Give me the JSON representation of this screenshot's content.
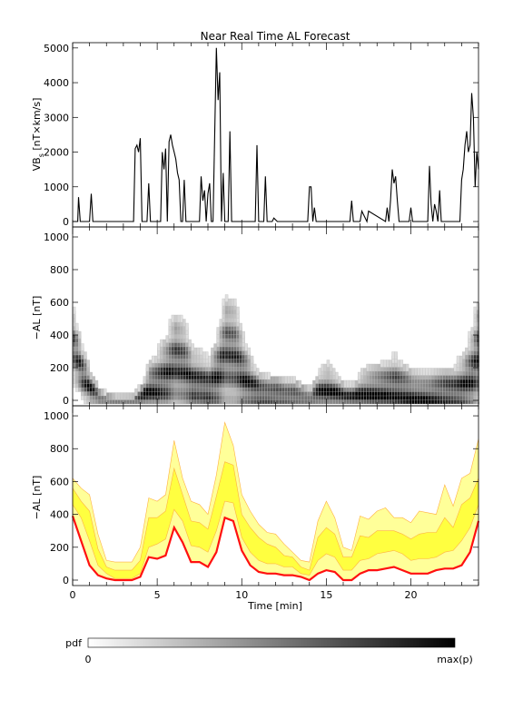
{
  "title": "Near Real Time AL Forecast",
  "colors": {
    "median": "#ff1010",
    "band_inner": "#ffff40",
    "band_outer": "#ffff99",
    "band_line": "#ffb040",
    "trace": "#000000"
  },
  "colorbar": {
    "label": "pdf",
    "min_label": "0",
    "max_label": "max(p)"
  },
  "chart_data": [
    {
      "type": "line",
      "panel": "vbs",
      "ylabel_main": "VB",
      "ylabel_sub": "s",
      "ylabel_rest": " [nT×km/s]",
      "ylim": [
        0,
        5100
      ],
      "xlim": [
        0,
        24
      ],
      "yticks": [
        "0",
        "1000",
        "2000",
        "3000",
        "4000",
        "5000"
      ],
      "ytick_values": [
        0,
        1000,
        2000,
        3000,
        4000,
        5000
      ],
      "x": [
        0,
        0.3,
        0.35,
        0.45,
        1.0,
        1.1,
        1.2,
        3.6,
        3.7,
        3.8,
        3.9,
        4.0,
        4.1,
        4.4,
        4.5,
        4.6,
        5.2,
        5.3,
        5.4,
        5.5,
        5.6,
        5.7,
        5.8,
        5.9,
        6.0,
        6.1,
        6.2,
        6.3,
        6.4,
        6.5,
        6.6,
        6.7,
        6.8,
        7.5,
        7.6,
        7.7,
        7.8,
        7.9,
        8.0,
        8.1,
        8.2,
        8.3,
        8.5,
        8.6,
        8.7,
        8.8,
        8.9,
        9.0,
        9.2,
        9.3,
        9.4,
        9.6,
        9.7,
        9.8,
        10.8,
        10.9,
        11.0,
        11.1,
        11.3,
        11.4,
        11.5,
        11.6,
        11.8,
        11.9,
        12.1,
        13.9,
        14.0,
        14.1,
        14.2,
        14.3,
        14.4,
        16.4,
        16.5,
        16.6,
        17.0,
        17.1,
        17.4,
        17.5,
        18.5,
        18.6,
        18.7,
        18.8,
        18.9,
        19.0,
        19.1,
        19.2,
        19.3,
        19.9,
        20.0,
        20.1,
        21.0,
        21.1,
        21.2,
        21.3,
        21.4,
        21.5,
        21.6,
        21.7,
        21.8,
        22.0,
        22.1,
        22.2,
        22.8,
        22.9,
        23.0,
        23.1,
        23.2,
        23.3,
        23.4,
        23.5,
        23.6,
        23.7,
        23.8,
        23.9,
        24.0
      ],
      "values": [
        0,
        0,
        700,
        0,
        0,
        800,
        0,
        0,
        2100,
        2200,
        2000,
        2400,
        0,
        0,
        1100,
        0,
        0,
        2000,
        1500,
        2100,
        0,
        2300,
        2500,
        2200,
        2000,
        1800,
        1400,
        1200,
        0,
        0,
        1200,
        0,
        0,
        0,
        1300,
        600,
        900,
        0,
        800,
        1100,
        0,
        0,
        5000,
        3500,
        4300,
        0,
        1400,
        0,
        0,
        2600,
        0,
        0,
        0,
        0,
        0,
        2200,
        0,
        0,
        0,
        1300,
        0,
        0,
        0,
        100,
        0,
        0,
        1000,
        1000,
        0,
        400,
        0,
        0,
        600,
        0,
        0,
        300,
        0,
        300,
        0,
        400,
        0,
        600,
        1500,
        1100,
        1300,
        600,
        0,
        0,
        400,
        0,
        0,
        1600,
        500,
        0,
        500,
        300,
        0,
        900,
        0,
        0,
        0,
        0,
        0,
        0,
        1200,
        1500,
        2200,
        2600,
        2000,
        2200,
        3700,
        3000,
        1000,
        2000,
        1500
      ]
    },
    {
      "type": "heatmap",
      "panel": "al_pdf",
      "ylabel": "−AL [nT]",
      "ylim": [
        0,
        1050
      ],
      "xlim": [
        0,
        24
      ],
      "yticks": [
        "0",
        "200",
        "400",
        "600",
        "800",
        "1000"
      ],
      "ytick_values": [
        0,
        200,
        400,
        600,
        800,
        1000
      ],
      "x_hours": [
        0,
        0.5,
        1.0,
        1.5,
        2.0,
        2.5,
        3.0,
        3.5,
        4.0,
        4.5,
        5.0,
        5.5,
        6.0,
        6.5,
        7.0,
        7.5,
        8.0,
        8.5,
        9.0,
        9.5,
        10.0,
        10.5,
        11.0,
        11.5,
        12.0,
        12.5,
        13.0,
        13.5,
        14.0,
        14.5,
        15.0,
        15.5,
        16.0,
        16.5,
        17.0,
        17.5,
        18.0,
        18.5,
        19.0,
        19.5,
        20.0,
        20.5,
        21.0,
        21.5,
        22.0,
        22.5,
        23.0,
        23.5,
        24.0
      ],
      "center": [
        340,
        180,
        70,
        20,
        10,
        5,
        5,
        5,
        20,
        80,
        110,
        160,
        260,
        220,
        120,
        110,
        90,
        160,
        330,
        300,
        160,
        90,
        50,
        40,
        40,
        30,
        30,
        20,
        10,
        40,
        50,
        40,
        20,
        20,
        40,
        50,
        60,
        70,
        80,
        60,
        40,
        40,
        40,
        50,
        60,
        60,
        80,
        150,
        340
      ],
      "spread": [
        180,
        140,
        90,
        40,
        25,
        20,
        20,
        20,
        60,
        140,
        170,
        220,
        260,
        240,
        170,
        150,
        140,
        220,
        320,
        300,
        210,
        140,
        100,
        90,
        90,
        80,
        80,
        60,
        50,
        120,
        140,
        110,
        70,
        70,
        110,
        130,
        140,
        150,
        170,
        150,
        120,
        110,
        110,
        120,
        130,
        130,
        160,
        230,
        330
      ]
    },
    {
      "type": "area",
      "panel": "al_forecast",
      "ylabel": "−AL [nT]",
      "xlabel": "Time [min]",
      "ylim": [
        0,
        1050
      ],
      "xlim": [
        0,
        24
      ],
      "xticks": [
        "0",
        "5",
        "10",
        "15",
        "20"
      ],
      "xtick_values": [
        0,
        5,
        10,
        15,
        20
      ],
      "yticks": [
        "0",
        "200",
        "400",
        "600",
        "800",
        "1000"
      ],
      "ytick_values": [
        0,
        200,
        400,
        600,
        800,
        1000
      ],
      "x": [
        0,
        0.5,
        1.0,
        1.5,
        2.0,
        2.5,
        3.0,
        3.5,
        4.0,
        4.5,
        5.0,
        5.5,
        6.0,
        6.5,
        7.0,
        7.5,
        8.0,
        8.5,
        9.0,
        9.5,
        10.0,
        10.5,
        11.0,
        11.5,
        12.0,
        12.5,
        13.0,
        13.5,
        14.0,
        14.5,
        15.0,
        15.5,
        16.0,
        16.5,
        17.0,
        17.5,
        18.0,
        18.5,
        19.0,
        19.5,
        20.0,
        20.5,
        21.0,
        21.5,
        22.0,
        22.5,
        23.0,
        23.5,
        24.0
      ],
      "series": [
        {
          "role": "outer_upper",
          "values": [
            620,
            560,
            520,
            280,
            120,
            110,
            110,
            110,
            200,
            500,
            480,
            520,
            850,
            620,
            480,
            460,
            400,
            640,
            960,
            820,
            520,
            420,
            340,
            290,
            280,
            220,
            170,
            120,
            110,
            360,
            480,
            380,
            200,
            180,
            390,
            370,
            420,
            440,
            380,
            380,
            350,
            420,
            410,
            400,
            580,
            450,
            620,
            650,
            860
          ]
        },
        {
          "role": "inner_upper",
          "values": [
            560,
            480,
            420,
            190,
            80,
            60,
            60,
            60,
            120,
            380,
            380,
            420,
            680,
            520,
            360,
            350,
            310,
            510,
            720,
            700,
            400,
            320,
            260,
            220,
            200,
            150,
            140,
            80,
            60,
            260,
            320,
            280,
            140,
            140,
            270,
            260,
            300,
            300,
            300,
            280,
            250,
            280,
            290,
            290,
            380,
            320,
            460,
            500,
            620
          ]
        },
        {
          "role": "inner_lower",
          "values": [
            460,
            380,
            240,
            90,
            40,
            10,
            10,
            10,
            40,
            200,
            220,
            250,
            430,
            360,
            210,
            200,
            170,
            300,
            480,
            470,
            260,
            170,
            120,
            100,
            100,
            80,
            80,
            40,
            30,
            120,
            160,
            140,
            60,
            60,
            120,
            130,
            160,
            170,
            180,
            160,
            120,
            130,
            130,
            140,
            170,
            180,
            240,
            320,
            460
          ]
        },
        {
          "role": "median",
          "values": [
            390,
            240,
            90,
            30,
            10,
            0,
            0,
            0,
            20,
            140,
            130,
            150,
            320,
            230,
            110,
            110,
            80,
            170,
            380,
            360,
            180,
            90,
            50,
            40,
            40,
            30,
            30,
            20,
            0,
            40,
            60,
            50,
            0,
            0,
            40,
            60,
            60,
            70,
            80,
            60,
            40,
            40,
            40,
            60,
            70,
            70,
            90,
            170,
            360
          ]
        }
      ]
    }
  ]
}
